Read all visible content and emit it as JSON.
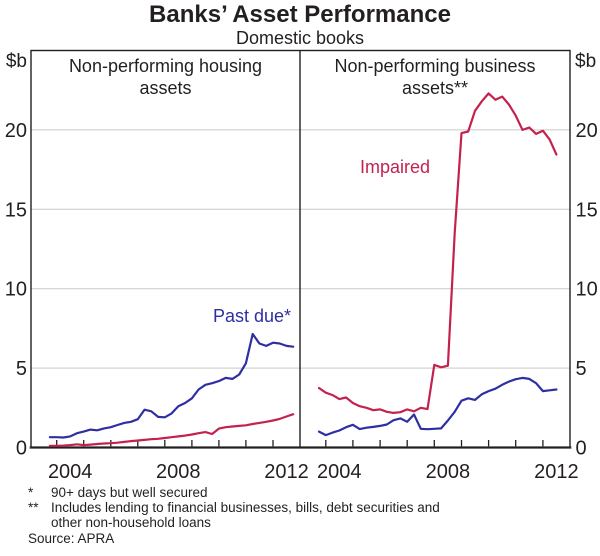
{
  "title": "Banks’ Asset Performance",
  "subtitle": "Domestic books",
  "unit_left": "$b",
  "unit_right": "$b",
  "footnotes": [
    {
      "marker": "*",
      "text": "90+ days but well secured"
    },
    {
      "marker": "**",
      "text": "Includes lending to financial businesses, bills, debt securities and\nother non-household loans"
    }
  ],
  "source": "Source: APRA",
  "colors": {
    "past_due_blue": "#2f2fa2",
    "impaired_red": "#c4224e",
    "grid": "#c9c9c9",
    "frame": "#231f20",
    "zero_axis": "#77787b"
  },
  "chart_data": [
    {
      "type": "line",
      "panel": "left",
      "title": "Non-performing housing\nassets",
      "ylabel": "$b",
      "ylim": [
        0,
        25
      ],
      "y_ticks": [
        0,
        5,
        10,
        15,
        20
      ],
      "x_tick_labels": [
        2004,
        2008,
        2012
      ],
      "x_start": 2003.25,
      "x_step": 0.25,
      "grid": true,
      "legend_position": "in-plot-labels",
      "annotations": [
        {
          "text": "Past due*",
          "color": "#2f2fa2"
        }
      ],
      "series": [
        {
          "name": "Past due*",
          "color": "#2f2fa2",
          "values": [
            0.65,
            0.65,
            0.63,
            0.7,
            0.9,
            1.0,
            1.13,
            1.08,
            1.2,
            1.28,
            1.42,
            1.55,
            1.62,
            1.78,
            2.38,
            2.28,
            1.93,
            1.9,
            2.15,
            2.6,
            2.8,
            3.1,
            3.65,
            3.95,
            4.05,
            4.18,
            4.38,
            4.32,
            4.6,
            5.3,
            7.15,
            6.55,
            6.4,
            6.6,
            6.55,
            6.4,
            6.35
          ]
        },
        {
          "name": "Impaired",
          "color": "#c4224e",
          "values": [
            0.1,
            0.1,
            0.12,
            0.15,
            0.2,
            0.15,
            0.18,
            0.22,
            0.25,
            0.27,
            0.3,
            0.35,
            0.4,
            0.44,
            0.48,
            0.52,
            0.55,
            0.6,
            0.65,
            0.7,
            0.75,
            0.82,
            0.9,
            0.97,
            0.85,
            1.19,
            1.28,
            1.32,
            1.36,
            1.4,
            1.48,
            1.55,
            1.62,
            1.7,
            1.8,
            1.95,
            2.1
          ]
        }
      ]
    },
    {
      "type": "line",
      "panel": "right",
      "title": "Non-performing business\nassets**",
      "ylabel": "$b",
      "ylim": [
        0,
        25
      ],
      "y_ticks": [
        0,
        5,
        10,
        15,
        20
      ],
      "x_tick_labels": [
        2004,
        2008,
        2012
      ],
      "x_start": 2003.25,
      "x_step": 0.25,
      "grid": true,
      "legend_position": "in-plot-labels",
      "annotations": [
        {
          "text": "Impaired",
          "color": "#c4224e"
        }
      ],
      "series": [
        {
          "name": "Impaired",
          "color": "#c4224e",
          "values": [
            3.75,
            3.45,
            3.3,
            3.05,
            3.15,
            2.8,
            2.6,
            2.5,
            2.35,
            2.4,
            2.25,
            2.18,
            2.22,
            2.4,
            2.28,
            2.5,
            2.42,
            5.2,
            5.05,
            5.15,
            13.5,
            19.8,
            19.9,
            21.2,
            21.8,
            22.3,
            21.9,
            22.1,
            21.6,
            20.9,
            20.0,
            20.15,
            19.75,
            19.95,
            19.4,
            18.45
          ]
        },
        {
          "name": "Past due",
          "color": "#2f2fa2",
          "values": [
            1.0,
            0.78,
            0.94,
            1.07,
            1.28,
            1.43,
            1.16,
            1.25,
            1.3,
            1.36,
            1.45,
            1.72,
            1.83,
            1.62,
            2.08,
            1.18,
            1.15,
            1.18,
            1.2,
            1.7,
            2.25,
            2.95,
            3.1,
            3.0,
            3.35,
            3.55,
            3.7,
            3.95,
            4.15,
            4.3,
            4.38,
            4.32,
            4.05,
            3.55,
            3.6,
            3.65
          ]
        }
      ]
    }
  ]
}
